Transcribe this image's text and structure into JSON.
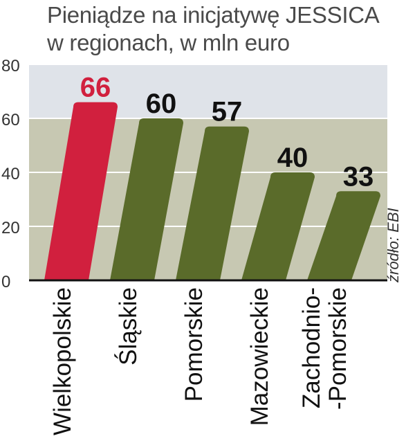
{
  "title": {
    "line1": "Pieniądze na inicjatywę JESSICA",
    "line2": "w regionach, w mln euro"
  },
  "source": "źródło: EBI",
  "colors": {
    "highlight": "#d1203e",
    "bar": "#5a6b2a",
    "bg_light": "#dfe3e9",
    "bg_dark": "#c7c8b2",
    "axis": "#111111",
    "highlight_label": "#d1203e",
    "label": "#111111"
  },
  "chart_data": {
    "type": "bar",
    "categories": [
      "Wielkopolskie",
      "Śląskie",
      "Pomorskie",
      "Mazowieckie",
      "Zachodnio-\n-Pomorskie"
    ],
    "values": [
      66,
      60,
      57,
      40,
      33
    ],
    "highlight_index": 0,
    "ylim": [
      0,
      80
    ],
    "yticks": [
      0,
      20,
      40,
      60,
      80
    ],
    "grid": true
  }
}
